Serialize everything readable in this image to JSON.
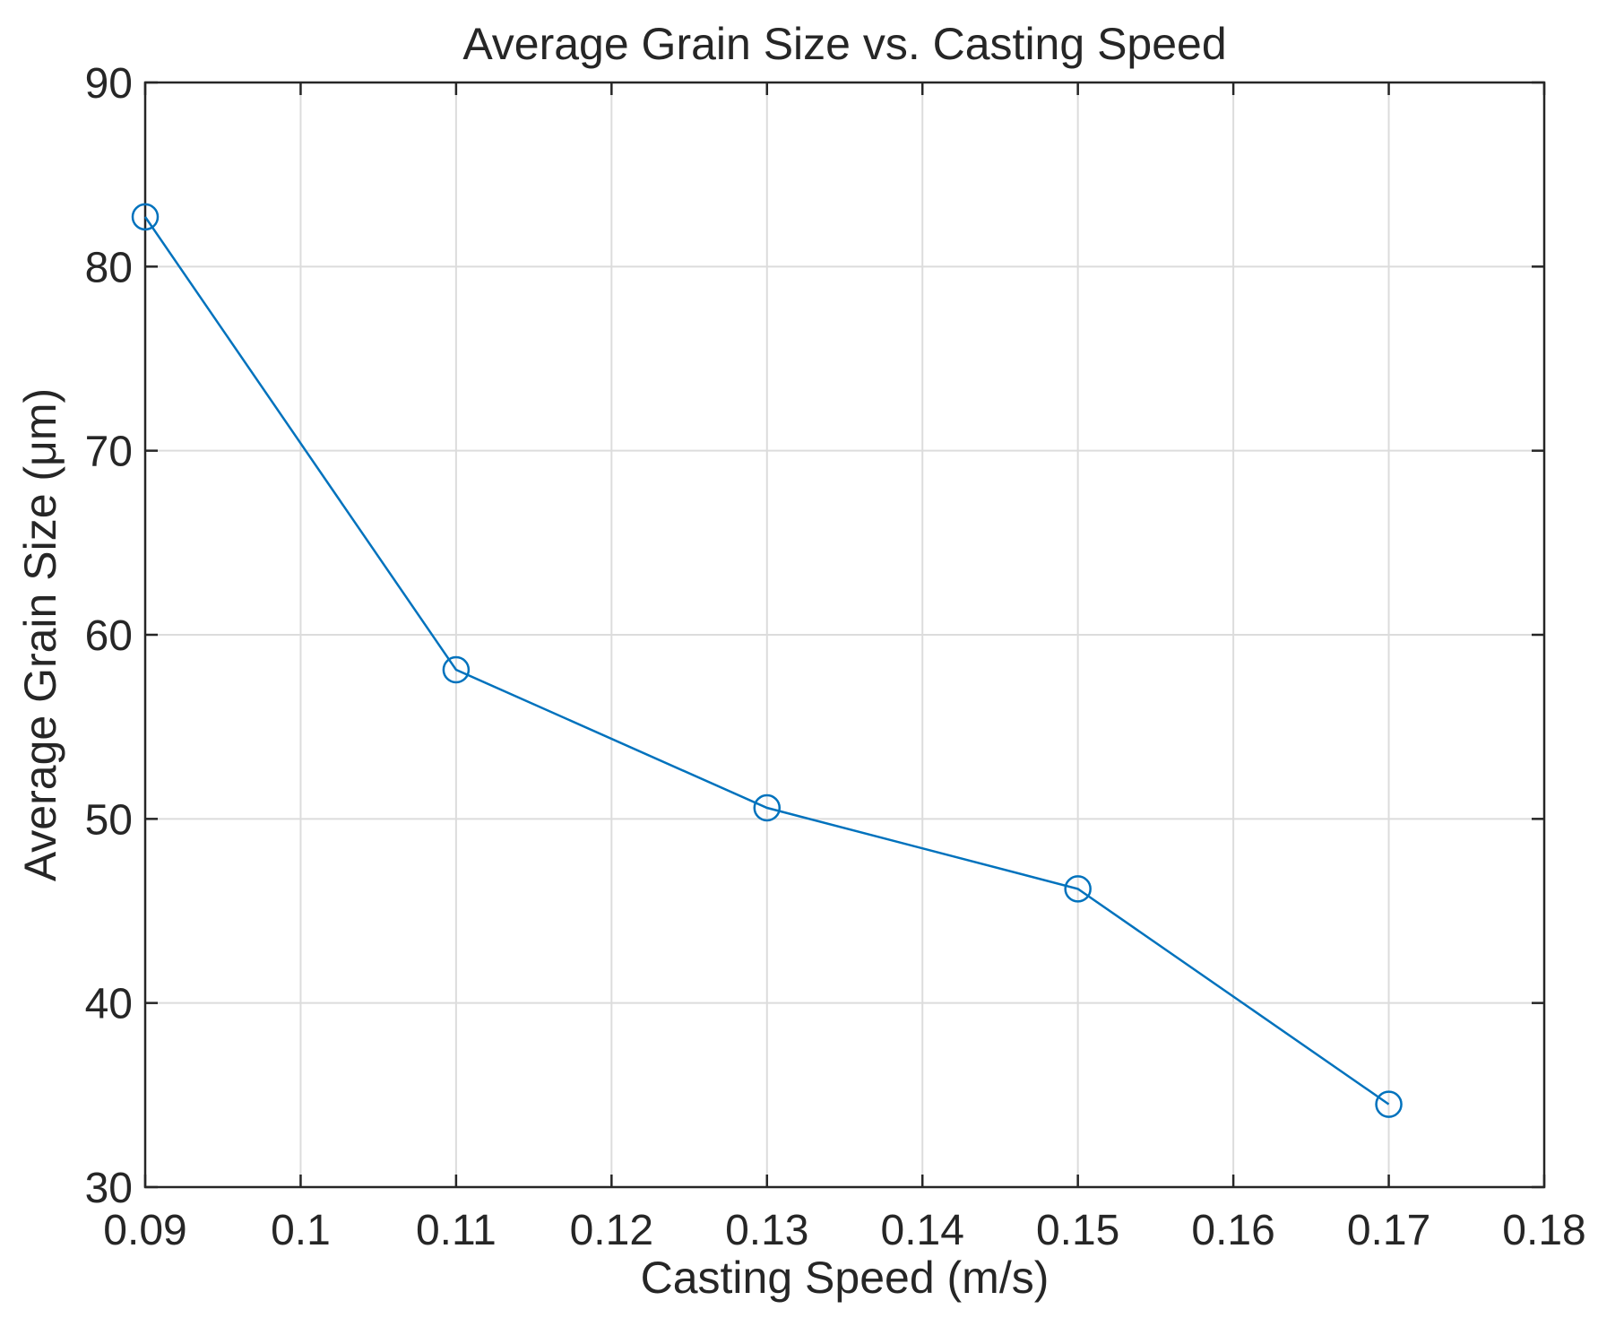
{
  "chart_data": {
    "type": "line",
    "title": "Average Grain Size vs. Casting Speed",
    "xlabel": "Casting Speed (m/s)",
    "ylabel": "Average Grain Size (μm)",
    "xlim": [
      0.09,
      0.18
    ],
    "ylim": [
      30,
      90
    ],
    "grid": true,
    "x_ticks": [
      0.09,
      0.1,
      0.11,
      0.12,
      0.13,
      0.14,
      0.15,
      0.16,
      0.17,
      0.18
    ],
    "x_tick_labels": [
      "0.09",
      "0.1",
      "0.11",
      "0.12",
      "0.13",
      "0.14",
      "0.15",
      "0.16",
      "0.17",
      "0.18"
    ],
    "y_ticks": [
      30,
      40,
      50,
      60,
      70,
      80,
      90
    ],
    "y_tick_labels": [
      "30",
      "40",
      "50",
      "60",
      "70",
      "80",
      "90"
    ],
    "series": [
      {
        "name": "Average Grain Size",
        "color": "#0072BD",
        "marker": "circle",
        "x": [
          0.09,
          0.11,
          0.13,
          0.15,
          0.17
        ],
        "values": [
          82.7,
          58.1,
          50.6,
          46.2,
          34.5
        ]
      }
    ]
  }
}
